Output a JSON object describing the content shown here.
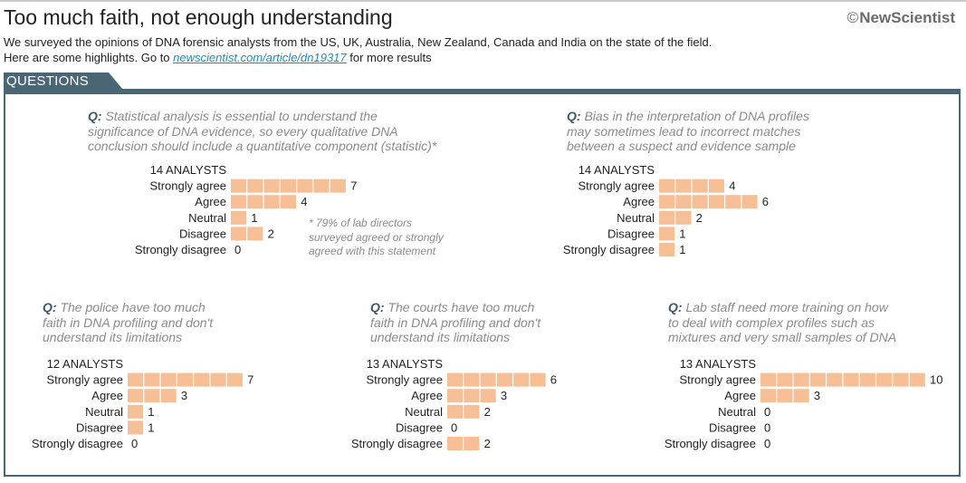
{
  "header": {
    "title": "Too much faith, not enough understanding",
    "brand_symbol": "©",
    "brand": "NewScientist",
    "subtitle_line1": "We surveyed the opinions of DNA forensic analysts from the US, UK, Australia, New Zealand, Canada and India on the state of the field.",
    "subtitle_line2_before": "Here are some highlights. Go to ",
    "subtitle_link": "newscientist.com/article/dn19317",
    "subtitle_line2_after": " for more results"
  },
  "section_label": "QUESTIONS",
  "question_prefix": "Q:",
  "footnote": {
    "line1": "* 79% of lab directors",
    "line2": "surveyed agreed or strongly",
    "line3": "agreed with this statement"
  },
  "colors": {
    "bar": "#f6bf95",
    "bar_divider": "#ffffff",
    "panel_border": "#4a6675",
    "question_text": "#8a8a8a"
  },
  "chart_data": [
    {
      "type": "bar",
      "question_lines": [
        "Statistical analysis is essential to understand the",
        "significance of DNA evidence, so every qualitative DNA",
        "conclusion should include a quantitative component (statistic)*"
      ],
      "respondents": "14 ANALYSTS",
      "categories": [
        "Strongly agree",
        "Agree",
        "Neutral",
        "Disagree",
        "Strongly disagree"
      ],
      "values": [
        7,
        4,
        1,
        2,
        0
      ]
    },
    {
      "type": "bar",
      "question_lines": [
        "Bias in the interpretation of DNA profiles",
        "may sometimes lead to incorrect matches",
        "between a suspect and evidence sample"
      ],
      "respondents": "14 ANALYSTS",
      "categories": [
        "Strongly agree",
        "Agree",
        "Neutral",
        "Disagree",
        "Strongly disagree"
      ],
      "values": [
        4,
        6,
        2,
        1,
        1
      ]
    },
    {
      "type": "bar",
      "question_lines": [
        "The police have too much",
        "faith in DNA profiling and don't",
        "understand its limitations"
      ],
      "respondents": "12 ANALYSTS",
      "categories": [
        "Strongly agree",
        "Agree",
        "Neutral",
        "Disagree",
        "Strongly disagree"
      ],
      "values": [
        7,
        3,
        1,
        1,
        0
      ]
    },
    {
      "type": "bar",
      "question_lines": [
        "The courts have too much",
        "faith in DNA profiling and don't",
        "understand its limitations"
      ],
      "respondents": "13 ANALYSTS",
      "categories": [
        "Strongly agree",
        "Agree",
        "Neutral",
        "Disagree",
        "Strongly disagree"
      ],
      "values": [
        6,
        3,
        2,
        0,
        2
      ]
    },
    {
      "type": "bar",
      "question_lines": [
        "Lab staff need more training on how",
        "to deal with complex profiles such as",
        "mixtures and very small samples of DNA"
      ],
      "respondents": "13 ANALYSTS",
      "categories": [
        "Strongly agree",
        "Agree",
        "Neutral",
        "Disagree",
        "Strongly disagree"
      ],
      "values": [
        10,
        3,
        0,
        0,
        0
      ]
    }
  ]
}
